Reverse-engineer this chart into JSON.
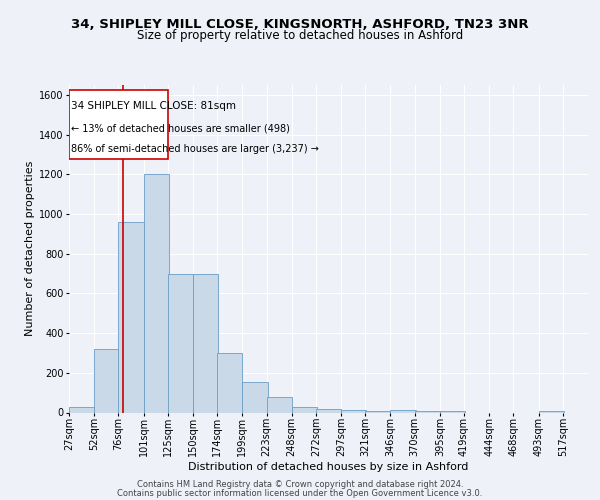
{
  "title_line1": "34, SHIPLEY MILL CLOSE, KINGSNORTH, ASHFORD, TN23 3NR",
  "title_line2": "Size of property relative to detached houses in Ashford",
  "xlabel": "Distribution of detached houses by size in Ashford",
  "ylabel": "Number of detached properties",
  "annotation_line1": "34 SHIPLEY MILL CLOSE: 81sqm",
  "annotation_line2": "← 13% of detached houses are smaller (498)",
  "annotation_line3": "86% of semi-detached houses are larger (3,237) →",
  "bar_values": [
    30,
    320,
    960,
    1200,
    700,
    700,
    300,
    155,
    80,
    30,
    18,
    12,
    10,
    12,
    8,
    8,
    0,
    0,
    0,
    10,
    0
  ],
  "bin_labels": [
    "27sqm",
    "52sqm",
    "76sqm",
    "101sqm",
    "125sqm",
    "150sqm",
    "174sqm",
    "199sqm",
    "223sqm",
    "248sqm",
    "272sqm",
    "297sqm",
    "321sqm",
    "346sqm",
    "370sqm",
    "395sqm",
    "419sqm",
    "444sqm",
    "468sqm",
    "493sqm",
    "517sqm"
  ],
  "bin_edges": [
    27,
    52,
    76,
    101,
    125,
    150,
    174,
    199,
    223,
    248,
    272,
    297,
    321,
    346,
    370,
    395,
    419,
    444,
    468,
    493,
    517
  ],
  "bar_color": "#c9d9e8",
  "bar_edge_color": "#6a9ec5",
  "red_line_x": 81,
  "red_line_color": "#cc0000",
  "annotation_box_color": "#cc0000",
  "ylim": [
    0,
    1650
  ],
  "yticks": [
    0,
    200,
    400,
    600,
    800,
    1000,
    1200,
    1400,
    1600
  ],
  "background_color": "#eef2f8",
  "grid_color": "#ffffff",
  "footer_line1": "Contains HM Land Registry data © Crown copyright and database right 2024.",
  "footer_line2": "Contains public sector information licensed under the Open Government Licence v3.0.",
  "title_fontsize": 9.5,
  "subtitle_fontsize": 8.5,
  "axis_label_fontsize": 8,
  "tick_fontsize": 7,
  "footer_fontsize": 6
}
